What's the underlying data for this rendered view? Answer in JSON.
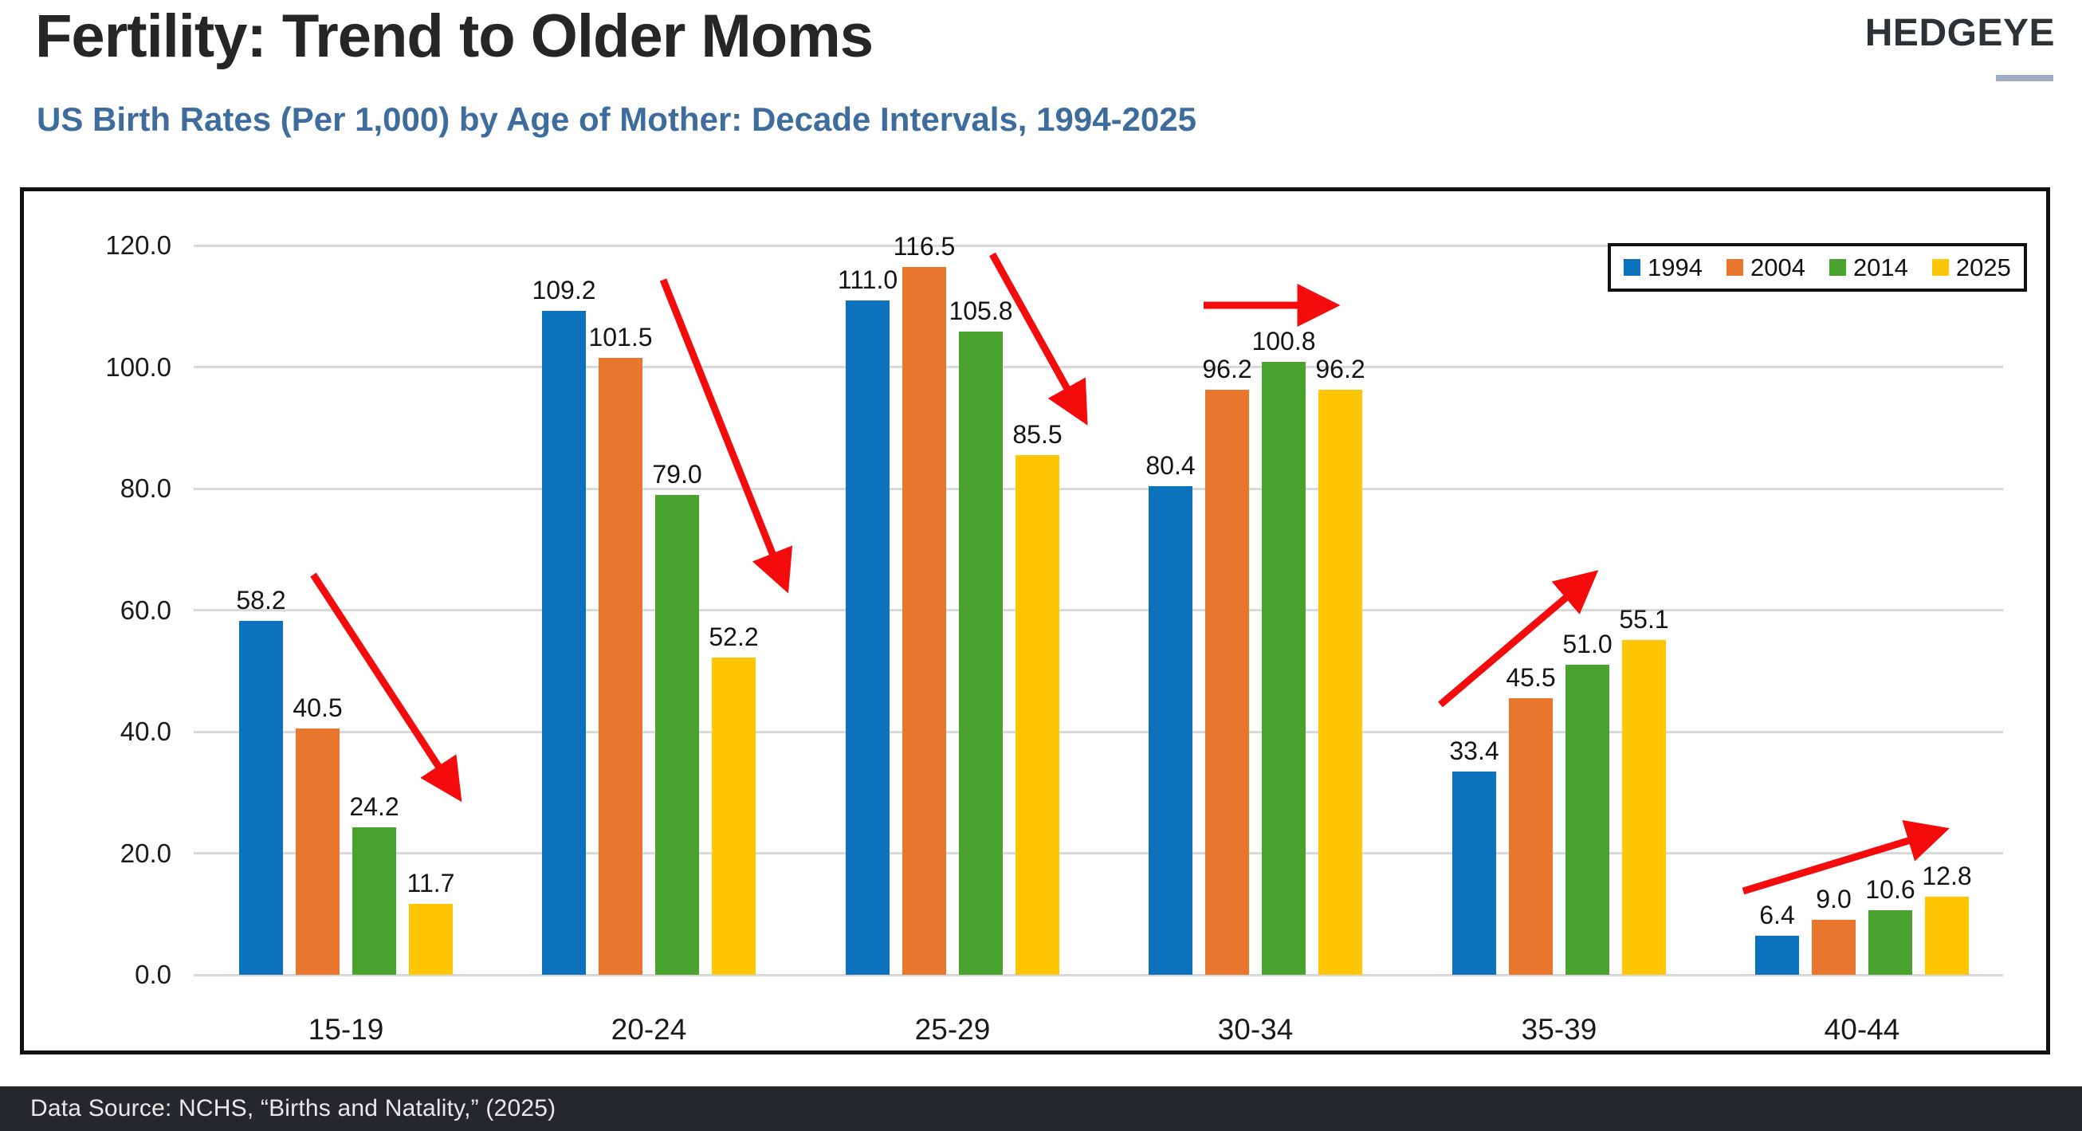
{
  "header": {
    "logo": "HEDGEYE"
  },
  "footer": {
    "source": "Data Source: NCHS, “Births and Natality,” (2025)"
  },
  "colors": {
    "title_text": "#262626",
    "subtitle_text": "#3e6d9d",
    "logo_underline": "#9fadc4",
    "footer_background": "#24282b",
    "gridline": "#d9d9d9",
    "arrow_red": "#f40b0b"
  },
  "chart_data": {
    "type": "bar",
    "title": "Fertility: Trend to Older Moms",
    "subtitle": "US Birth Rates (Per 1,000) by Age of Mother: Decade Intervals, 1994-2025",
    "categories": [
      "15-19",
      "20-24",
      "25-29",
      "30-34",
      "35-39",
      "40-44"
    ],
    "series": [
      {
        "name": "1994",
        "color": "#0d72bd",
        "values": [
          58.2,
          109.2,
          111.0,
          80.4,
          33.4,
          6.4
        ]
      },
      {
        "name": "2004",
        "color": "#e8762c",
        "values": [
          40.5,
          101.5,
          116.5,
          96.2,
          45.5,
          9.0
        ]
      },
      {
        "name": "2014",
        "color": "#4ba32f",
        "values": [
          24.2,
          79.0,
          105.8,
          100.8,
          51.0,
          10.6
        ]
      },
      {
        "name": "2025",
        "color": "#ffc603",
        "values": [
          11.7,
          52.2,
          85.5,
          96.2,
          55.1,
          12.8
        ]
      }
    ],
    "ylim": [
      0,
      120
    ],
    "ytick_step": 20,
    "ytick_format": "one_decimal",
    "grid": true,
    "value_labels": true,
    "legend_position": "top-right",
    "annotations": [
      {
        "type": "arrow",
        "direction": "down",
        "category": "15-19",
        "from": [
          363,
          481
        ],
        "to": [
          542,
          755
        ]
      },
      {
        "type": "arrow",
        "direction": "down",
        "category": "20-24",
        "from": [
          802,
          111
        ],
        "to": [
          954,
          492
        ]
      },
      {
        "type": "arrow",
        "direction": "down",
        "category": "25-29",
        "from": [
          1215,
          79
        ],
        "to": [
          1328,
          282
        ]
      },
      {
        "type": "arrow",
        "direction": "flat",
        "category": "30-34",
        "from": [
          1480,
          143
        ],
        "to": [
          1638,
          143
        ]
      },
      {
        "type": "arrow",
        "direction": "up",
        "category": "35-39",
        "from": [
          1777,
          644
        ],
        "to": [
          1965,
          484
        ]
      },
      {
        "type": "arrow",
        "direction": "up",
        "category": "40-44",
        "from": [
          2157,
          878
        ],
        "to": [
          2403,
          803
        ]
      }
    ]
  }
}
